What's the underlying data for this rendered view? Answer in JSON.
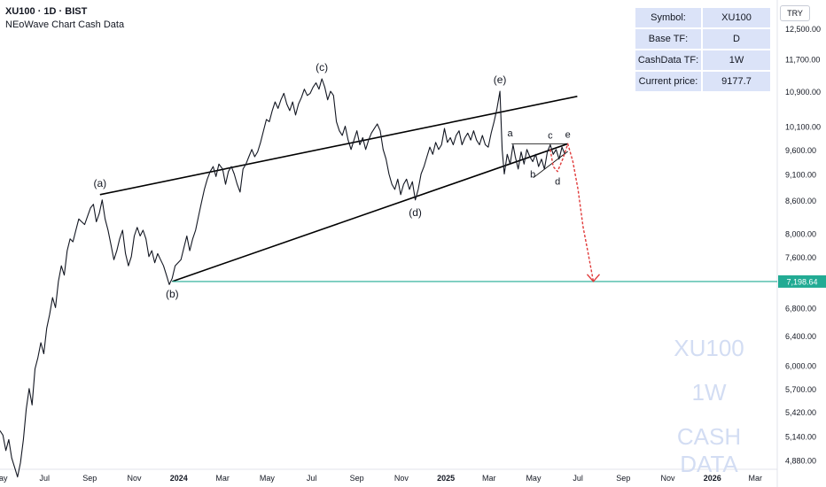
{
  "header": {
    "symbol_line": "XU100 · 1D · BIST",
    "subtitle": "NEoWave Chart Cash Data"
  },
  "info_table": {
    "rows": [
      {
        "key": "Symbol:",
        "value": "XU100"
      },
      {
        "key": "Base TF:",
        "value": "D"
      },
      {
        "key": "CashData TF:",
        "value": "1W"
      },
      {
        "key": "Current price:",
        "value": "9177.7"
      }
    ]
  },
  "currency": "TRY",
  "watermark": {
    "line1": "XU100",
    "line2": "1W",
    "line3": "CASH DATA"
  },
  "colors": {
    "price_line": "#131722",
    "trend_lines": "#000000",
    "target_line": "#22ab94",
    "target_label_bg": "#22ab94",
    "projection": "#e03a3a",
    "info_cell_bg": "#dbe3f8",
    "watermark": "#d3ddf3"
  },
  "chart_data": {
    "type": "line",
    "title": "XU100 · 1D · BIST",
    "y_scale": "log",
    "ylim": [
      4780,
      13300
    ],
    "xlim": [
      "2023-05-01",
      "2026-03-31"
    ],
    "x_tick_labels": [
      {
        "label": "May",
        "date": "2023-05-01"
      },
      {
        "label": "Jul",
        "date": "2023-07-01"
      },
      {
        "label": "Sep",
        "date": "2023-09-01"
      },
      {
        "label": "Nov",
        "date": "2023-11-01"
      },
      {
        "label": "2024",
        "date": "2024-01-01"
      },
      {
        "label": "Mar",
        "date": "2024-03-01"
      },
      {
        "label": "May",
        "date": "2024-05-01"
      },
      {
        "label": "Jul",
        "date": "2024-07-01"
      },
      {
        "label": "Sep",
        "date": "2024-09-01"
      },
      {
        "label": "Nov",
        "date": "2024-11-01"
      },
      {
        "label": "2025",
        "date": "2025-01-01"
      },
      {
        "label": "Mar",
        "date": "2025-03-01"
      },
      {
        "label": "May",
        "date": "2025-05-01"
      },
      {
        "label": "Jul",
        "date": "2025-07-01"
      },
      {
        "label": "Sep",
        "date": "2025-09-01"
      },
      {
        "label": "Nov",
        "date": "2025-11-01"
      },
      {
        "label": "2026",
        "date": "2026-01-01"
      },
      {
        "label": "Mar",
        "date": "2026-03-01"
      }
    ],
    "y_tick_labels": [
      "12,500.00",
      "11,700.00",
      "10,900.00",
      "10,100.00",
      "9,600.00",
      "9,100.00",
      "8,600.00",
      "8,000.00",
      "7,600.00",
      "6,800.00",
      "6,400.00",
      "6,000.00",
      "5,700.00",
      "5,420.00",
      "5,140.00",
      "4,880.00"
    ],
    "target_level": {
      "value": 7198.64,
      "label": "7,198.64"
    },
    "series": [
      {
        "values": [
          [
            "2023-05-01",
            5200
          ],
          [
            "2023-05-05",
            5150
          ],
          [
            "2023-05-09",
            4980
          ],
          [
            "2023-05-13",
            5100
          ],
          [
            "2023-05-17",
            4900
          ],
          [
            "2023-05-21",
            4800
          ],
          [
            "2023-05-25",
            4700
          ],
          [
            "2023-05-29",
            4850
          ],
          [
            "2023-06-02",
            5100
          ],
          [
            "2023-06-06",
            5450
          ],
          [
            "2023-06-10",
            5700
          ],
          [
            "2023-06-14",
            5500
          ],
          [
            "2023-06-18",
            5950
          ],
          [
            "2023-06-22",
            6100
          ],
          [
            "2023-06-26",
            6300
          ],
          [
            "2023-06-30",
            6150
          ],
          [
            "2023-07-04",
            6500
          ],
          [
            "2023-07-08",
            6700
          ],
          [
            "2023-07-12",
            6950
          ],
          [
            "2023-07-16",
            6800
          ],
          [
            "2023-07-20",
            7200
          ],
          [
            "2023-07-24",
            7450
          ],
          [
            "2023-07-28",
            7300
          ],
          [
            "2023-08-01",
            7700
          ],
          [
            "2023-08-05",
            7900
          ],
          [
            "2023-08-09",
            7850
          ],
          [
            "2023-08-13",
            8050
          ],
          [
            "2023-08-17",
            8250
          ],
          [
            "2023-08-21",
            8200
          ],
          [
            "2023-08-25",
            8150
          ],
          [
            "2023-08-29",
            8300
          ],
          [
            "2023-09-02",
            8450
          ],
          [
            "2023-09-06",
            8520
          ],
          [
            "2023-09-10",
            8200
          ],
          [
            "2023-09-14",
            8350
          ],
          [
            "2023-09-18",
            8600
          ],
          [
            "2023-09-22",
            8250
          ],
          [
            "2023-09-26",
            8050
          ],
          [
            "2023-09-30",
            7800
          ],
          [
            "2023-10-04",
            7550
          ],
          [
            "2023-10-08",
            7700
          ],
          [
            "2023-10-12",
            7900
          ],
          [
            "2023-10-16",
            8050
          ],
          [
            "2023-10-20",
            7650
          ],
          [
            "2023-10-24",
            7450
          ],
          [
            "2023-10-28",
            7600
          ],
          [
            "2023-11-01",
            7950
          ],
          [
            "2023-11-05",
            8100
          ],
          [
            "2023-11-09",
            7950
          ],
          [
            "2023-11-13",
            8050
          ],
          [
            "2023-11-17",
            7900
          ],
          [
            "2023-11-21",
            7600
          ],
          [
            "2023-11-25",
            7700
          ],
          [
            "2023-11-29",
            7500
          ],
          [
            "2023-12-03",
            7650
          ],
          [
            "2023-12-07",
            7550
          ],
          [
            "2023-12-11",
            7450
          ],
          [
            "2023-12-15",
            7300
          ],
          [
            "2023-12-19",
            7150
          ],
          [
            "2023-12-23",
            7250
          ],
          [
            "2023-12-27",
            7450
          ],
          [
            "2023-12-31",
            7500
          ],
          [
            "2024-01-04",
            7550
          ],
          [
            "2024-01-08",
            7750
          ],
          [
            "2024-01-12",
            7950
          ],
          [
            "2024-01-16",
            7700
          ],
          [
            "2024-01-20",
            7900
          ],
          [
            "2024-01-24",
            8050
          ],
          [
            "2024-01-28",
            8300
          ],
          [
            "2024-02-01",
            8550
          ],
          [
            "2024-02-05",
            8800
          ],
          [
            "2024-02-09",
            9000
          ],
          [
            "2024-02-13",
            9150
          ],
          [
            "2024-02-17",
            9250
          ],
          [
            "2024-02-21",
            9050
          ],
          [
            "2024-02-25",
            9300
          ],
          [
            "2024-03-01",
            9200
          ],
          [
            "2024-03-05",
            8900
          ],
          [
            "2024-03-09",
            9150
          ],
          [
            "2024-03-13",
            9250
          ],
          [
            "2024-03-17",
            9100
          ],
          [
            "2024-03-21",
            8900
          ],
          [
            "2024-03-25",
            8750
          ],
          [
            "2024-03-29",
            9200
          ],
          [
            "2024-04-02",
            9300
          ],
          [
            "2024-04-06",
            9450
          ],
          [
            "2024-04-10",
            9600
          ],
          [
            "2024-04-14",
            9450
          ],
          [
            "2024-04-18",
            9550
          ],
          [
            "2024-04-22",
            9750
          ],
          [
            "2024-04-26",
            10000
          ],
          [
            "2024-04-30",
            10250
          ],
          [
            "2024-05-04",
            10200
          ],
          [
            "2024-05-08",
            10450
          ],
          [
            "2024-05-12",
            10650
          ],
          [
            "2024-05-16",
            10500
          ],
          [
            "2024-05-20",
            10700
          ],
          [
            "2024-05-24",
            10850
          ],
          [
            "2024-05-28",
            10600
          ],
          [
            "2024-06-01",
            10450
          ],
          [
            "2024-06-05",
            10650
          ],
          [
            "2024-06-09",
            10350
          ],
          [
            "2024-06-13",
            10600
          ],
          [
            "2024-06-17",
            10750
          ],
          [
            "2024-06-21",
            10950
          ],
          [
            "2024-06-25",
            10800
          ],
          [
            "2024-06-29",
            10850
          ],
          [
            "2024-07-03",
            11000
          ],
          [
            "2024-07-07",
            11100
          ],
          [
            "2024-07-11",
            10950
          ],
          [
            "2024-07-15",
            11200
          ],
          [
            "2024-07-19",
            11000
          ],
          [
            "2024-07-23",
            10700
          ],
          [
            "2024-07-27",
            10900
          ],
          [
            "2024-07-31",
            10800
          ],
          [
            "2024-08-04",
            10200
          ],
          [
            "2024-08-08",
            10000
          ],
          [
            "2024-08-12",
            9900
          ],
          [
            "2024-08-16",
            10100
          ],
          [
            "2024-08-20",
            9800
          ],
          [
            "2024-08-24",
            9600
          ],
          [
            "2024-08-28",
            9800
          ],
          [
            "2024-09-01",
            10000
          ],
          [
            "2024-09-05",
            9700
          ],
          [
            "2024-09-09",
            9850
          ],
          [
            "2024-09-13",
            9600
          ],
          [
            "2024-09-17",
            9800
          ],
          [
            "2024-09-21",
            9950
          ],
          [
            "2024-09-25",
            10050
          ],
          [
            "2024-09-29",
            10150
          ],
          [
            "2024-10-03",
            10000
          ],
          [
            "2024-10-07",
            9600
          ],
          [
            "2024-10-11",
            9400
          ],
          [
            "2024-10-15",
            9100
          ],
          [
            "2024-10-19",
            8900
          ],
          [
            "2024-10-23",
            8800
          ],
          [
            "2024-10-27",
            9000
          ],
          [
            "2024-10-31",
            8700
          ],
          [
            "2024-11-04",
            8900
          ],
          [
            "2024-11-08",
            9000
          ],
          [
            "2024-11-12",
            8800
          ],
          [
            "2024-11-16",
            8950
          ],
          [
            "2024-11-20",
            8600
          ],
          [
            "2024-11-24",
            8800
          ],
          [
            "2024-11-28",
            9100
          ],
          [
            "2024-12-02",
            9250
          ],
          [
            "2024-12-06",
            9450
          ],
          [
            "2024-12-10",
            9650
          ],
          [
            "2024-12-14",
            9500
          ],
          [
            "2024-12-18",
            9750
          ],
          [
            "2024-12-22",
            9600
          ],
          [
            "2024-12-26",
            9700
          ],
          [
            "2024-12-30",
            10050
          ],
          [
            "2025-01-03",
            9750
          ],
          [
            "2025-01-07",
            9850
          ],
          [
            "2025-01-11",
            9700
          ],
          [
            "2025-01-15",
            9900
          ],
          [
            "2025-01-19",
            10000
          ],
          [
            "2025-01-23",
            9700
          ],
          [
            "2025-01-27",
            9850
          ],
          [
            "2025-01-31",
            9950
          ],
          [
            "2025-02-04",
            9800
          ],
          [
            "2025-02-08",
            10000
          ],
          [
            "2025-02-12",
            9800
          ],
          [
            "2025-02-16",
            9700
          ],
          [
            "2025-02-20",
            9900
          ],
          [
            "2025-02-24",
            9700
          ],
          [
            "2025-02-28",
            9650
          ],
          [
            "2025-03-04",
            9950
          ],
          [
            "2025-03-08",
            10200
          ],
          [
            "2025-03-12",
            10500
          ],
          [
            "2025-03-16",
            10900
          ],
          [
            "2025-03-19",
            9600
          ],
          [
            "2025-03-22",
            9100
          ],
          [
            "2025-03-26",
            9500
          ],
          [
            "2025-03-30",
            9300
          ],
          [
            "2025-04-03",
            9700
          ],
          [
            "2025-04-06",
            9450
          ],
          [
            "2025-04-10",
            9200
          ],
          [
            "2025-04-14",
            9550
          ],
          [
            "2025-04-18",
            9300
          ],
          [
            "2025-04-22",
            9600
          ],
          [
            "2025-04-26",
            9450
          ],
          [
            "2025-04-30",
            9350
          ],
          [
            "2025-05-04",
            9500
          ],
          [
            "2025-05-08",
            9250
          ],
          [
            "2025-05-12",
            9400
          ],
          [
            "2025-05-16",
            9200
          ],
          [
            "2025-05-20",
            9550
          ],
          [
            "2025-05-24",
            9700
          ],
          [
            "2025-05-28",
            9500
          ],
          [
            "2025-06-01",
            9600
          ],
          [
            "2025-06-05",
            9400
          ],
          [
            "2025-06-09",
            9650
          ],
          [
            "2025-06-13",
            9500
          ]
        ]
      }
    ],
    "trend_lines": [
      {
        "name": "upper",
        "from": [
          "2023-09-15",
          8700
        ],
        "to": [
          "2025-06-30",
          10780
        ]
      },
      {
        "name": "lower",
        "from": [
          "2023-12-23",
          7200
        ],
        "to": [
          "2025-06-17",
          9720
        ]
      },
      {
        "name": "triangle-top",
        "from": [
          "2025-04-01",
          9720
        ],
        "to": [
          "2025-06-17",
          9720
        ]
      },
      {
        "name": "triangle-bottom",
        "from": [
          "2025-05-01",
          9030
        ],
        "to": [
          "2025-06-17",
          9560
        ]
      }
    ],
    "projection": [
      [
        "2025-05-24",
        9600
      ],
      [
        "2025-05-28",
        9250
      ],
      [
        "2025-06-03",
        9150
      ],
      [
        "2025-06-10",
        9400
      ],
      [
        "2025-06-17",
        9720
      ],
      [
        "2025-06-24",
        9350
      ],
      [
        "2025-07-01",
        8800
      ],
      [
        "2025-07-08",
        8100
      ],
      [
        "2025-07-15",
        7650
      ],
      [
        "2025-07-22",
        7200
      ]
    ],
    "annotations": [
      {
        "text": "(a)",
        "date": "2023-09-15",
        "value": 8700
      },
      {
        "text": "(b)",
        "date": "2023-12-23",
        "value": 7200
      },
      {
        "text": "(c)",
        "date": "2024-07-15",
        "value": 11200
      },
      {
        "text": "(d)",
        "date": "2024-11-20",
        "value": 8600
      },
      {
        "text": "(e)",
        "date": "2025-03-16",
        "value": 10900
      },
      {
        "text": "a",
        "date": "2025-03-30",
        "value": 9750
      },
      {
        "text": "b",
        "date": "2025-04-30",
        "value": 9300
      },
      {
        "text": "c",
        "date": "2025-05-24",
        "value": 9700
      },
      {
        "text": "d",
        "date": "2025-06-03",
        "value": 9150
      },
      {
        "text": "e",
        "date": "2025-06-17",
        "value": 9720
      }
    ]
  }
}
